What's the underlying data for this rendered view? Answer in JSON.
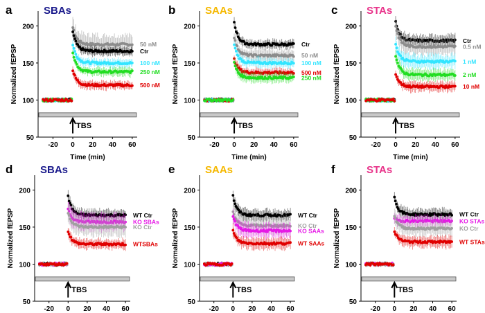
{
  "chart_data": [
    {
      "panel": "a",
      "type": "scatter",
      "title": "SBAs",
      "title_color": "#1a1a8c",
      "xlabel": "Time (min)",
      "ylabel": "Normalized fEPSP",
      "xlim": [
        -35,
        65
      ],
      "ylim": [
        50,
        220
      ],
      "xticks": [
        -20,
        0,
        20,
        40,
        60
      ],
      "yticks": [
        50,
        100,
        150,
        200
      ],
      "stimulus_label": "TBS",
      "series": [
        {
          "name": "50 nM",
          "color": "#8c8c8c",
          "baseline": 100,
          "peak": 198,
          "plateau": 175,
          "error": 14
        },
        {
          "name": "Ctr",
          "color": "#000000",
          "baseline": 100,
          "peak": 192,
          "plateau": 166,
          "error": 6
        },
        {
          "name": "100 nM",
          "color": "#33e5ff",
          "baseline": 100,
          "peak": 175,
          "plateau": 150,
          "error": 6
        },
        {
          "name": "250 nM",
          "color": "#22dd22",
          "baseline": 100,
          "peak": 165,
          "plateau": 138,
          "error": 6
        },
        {
          "name": "500 nM",
          "color": "#e00000",
          "baseline": 100,
          "peak": 140,
          "plateau": 120,
          "error": 6
        }
      ]
    },
    {
      "panel": "b",
      "type": "scatter",
      "title": "SAAs",
      "title_color": "#f5b800",
      "xlabel": "Time (min)",
      "ylabel": "Normalized fEPSP",
      "xlim": [
        -35,
        65
      ],
      "ylim": [
        50,
        220
      ],
      "xticks": [
        -20,
        0,
        20,
        40,
        60
      ],
      "yticks": [
        50,
        100,
        150,
        200
      ],
      "stimulus_label": "TBS",
      "series": [
        {
          "name": "Ctr",
          "color": "#000000",
          "baseline": 100,
          "peak": 205,
          "plateau": 175,
          "error": 6
        },
        {
          "name": "50 nM",
          "color": "#8c8c8c",
          "baseline": 100,
          "peak": 185,
          "plateau": 160,
          "error": 8
        },
        {
          "name": "100 nM",
          "color": "#33e5ff",
          "baseline": 100,
          "peak": 175,
          "plateau": 150,
          "error": 7
        },
        {
          "name": "500 nM",
          "color": "#e00000",
          "baseline": 100,
          "peak": 155,
          "plateau": 137,
          "error": 6
        },
        {
          "name": "250 nM",
          "color": "#22dd22",
          "baseline": 100,
          "peak": 150,
          "plateau": 130,
          "error": 7
        }
      ]
    },
    {
      "panel": "c",
      "type": "scatter",
      "title": "STAs",
      "title_color": "#e8338a",
      "xlabel": "Time (min)",
      "ylabel": "Normalized fEPSP",
      "xlim": [
        -35,
        65
      ],
      "ylim": [
        50,
        220
      ],
      "xticks": [
        -20,
        0,
        20,
        40,
        60
      ],
      "yticks": [
        50,
        100,
        150,
        200
      ],
      "stimulus_label": "TBS",
      "series": [
        {
          "name": "Ctr",
          "color": "#000000",
          "baseline": 100,
          "peak": 205,
          "plateau": 180,
          "error": 8
        },
        {
          "name": "0.5 nM",
          "color": "#8c8c8c",
          "baseline": 100,
          "peak": 200,
          "plateau": 172,
          "error": 12
        },
        {
          "name": "1 nM",
          "color": "#33e5ff",
          "baseline": 100,
          "peak": 175,
          "plateau": 152,
          "error": 10
        },
        {
          "name": "2 nM",
          "color": "#22dd22",
          "baseline": 100,
          "peak": 160,
          "plateau": 134,
          "error": 8
        },
        {
          "name": "10 nM",
          "color": "#e00000",
          "baseline": 100,
          "peak": 135,
          "plateau": 118,
          "error": 7
        }
      ]
    },
    {
      "panel": "d",
      "type": "scatter",
      "title": "SBAs",
      "title_color": "#1a1a8c",
      "xlabel": "Time (min)",
      "ylabel": "Normalized fEPSP",
      "xlim": [
        -35,
        65
      ],
      "ylim": [
        50,
        220
      ],
      "xticks": [
        -20,
        0,
        20,
        40,
        60
      ],
      "yticks": [
        50,
        100,
        150,
        200
      ],
      "stimulus_label": "TBS",
      "series": [
        {
          "name": "WT Ctr",
          "color": "#000000",
          "baseline": 100,
          "peak": 192,
          "plateau": 166,
          "error": 8
        },
        {
          "name": "KO SBAs",
          "color": "#e619e6",
          "baseline": 100,
          "peak": 175,
          "plateau": 157,
          "error": 12
        },
        {
          "name": "KO Ctr",
          "color": "#a0a0a0",
          "baseline": 100,
          "peak": 170,
          "plateau": 150,
          "error": 12
        },
        {
          "name": "WTSBAs",
          "color": "#e00000",
          "baseline": 100,
          "peak": 145,
          "plateau": 127,
          "error": 7
        }
      ]
    },
    {
      "panel": "e",
      "type": "scatter",
      "title": "SAAs",
      "title_color": "#f5b800",
      "xlabel": "Time (min)",
      "ylabel": "Normalized fEPSP",
      "xlim": [
        -35,
        65
      ],
      "ylim": [
        50,
        220
      ],
      "xticks": [
        -20,
        0,
        20,
        40,
        60
      ],
      "yticks": [
        50,
        100,
        150,
        200
      ],
      "stimulus_label": "TBS",
      "series": [
        {
          "name": "WT Ctr",
          "color": "#000000",
          "baseline": 100,
          "peak": 192,
          "plateau": 166,
          "error": 8
        },
        {
          "name": "KO Ctr",
          "color": "#a0a0a0",
          "baseline": 100,
          "peak": 170,
          "plateau": 152,
          "error": 12
        },
        {
          "name": "KO SAAs",
          "color": "#e619e6",
          "baseline": 100,
          "peak": 165,
          "plateau": 145,
          "error": 10
        },
        {
          "name": "WT SAAs",
          "color": "#e00000",
          "baseline": 100,
          "peak": 145,
          "plateau": 128,
          "error": 8
        }
      ]
    },
    {
      "panel": "f",
      "type": "scatter",
      "title": "STAs",
      "title_color": "#e8338a",
      "xlabel": "Time (min)",
      "ylabel": "Normalized fEPSP",
      "xlim": [
        -35,
        65
      ],
      "ylim": [
        50,
        220
      ],
      "xticks": [
        -20,
        0,
        20,
        40,
        60
      ],
      "yticks": [
        50,
        100,
        150,
        200
      ],
      "stimulus_label": "TBS",
      "series": [
        {
          "name": "WT Ctr",
          "color": "#000000",
          "baseline": 100,
          "peak": 190,
          "plateau": 167,
          "error": 8
        },
        {
          "name": "KO STAs",
          "color": "#e619e6",
          "baseline": 100,
          "peak": 162,
          "plateau": 158,
          "error": 8
        },
        {
          "name": "KO Ctr",
          "color": "#a0a0a0",
          "baseline": 100,
          "peak": 165,
          "plateau": 148,
          "error": 10
        },
        {
          "name": "WT STAs",
          "color": "#e00000",
          "baseline": 100,
          "peak": 145,
          "plateau": 130,
          "error": 8
        }
      ]
    }
  ]
}
